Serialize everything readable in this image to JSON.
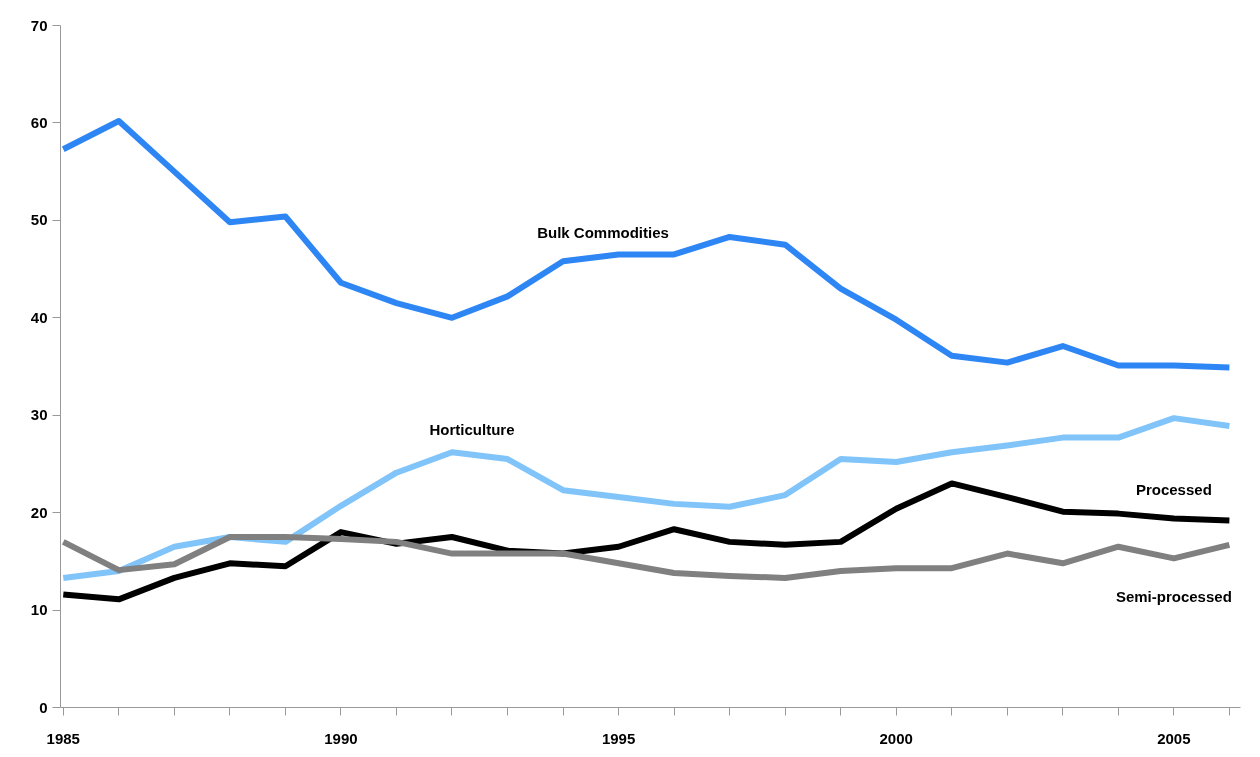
{
  "chart_data": {
    "type": "line",
    "x": [
      1985,
      1986,
      1987,
      1988,
      1989,
      1990,
      1991,
      1992,
      1993,
      1994,
      1995,
      1996,
      1997,
      1998,
      1999,
      2000,
      2001,
      2002,
      2003,
      2004,
      2005,
      2006
    ],
    "series": [
      {
        "name": "Bulk Commodities",
        "color": "#2e86f5",
        "values": [
          57.3,
          60.2,
          55.0,
          49.8,
          50.4,
          43.6,
          41.5,
          40.0,
          42.2,
          45.8,
          46.5,
          46.5,
          48.3,
          47.5,
          43.0,
          39.8,
          36.1,
          35.4,
          37.1,
          35.1,
          35.1,
          34.9
        ]
      },
      {
        "name": "Horticulture",
        "color": "#80c4fa",
        "values": [
          13.3,
          14.0,
          16.5,
          17.5,
          17.0,
          20.7,
          24.1,
          26.2,
          25.5,
          22.3,
          21.6,
          20.9,
          20.6,
          21.8,
          25.5,
          25.2,
          26.2,
          26.9,
          27.7,
          27.7,
          29.7,
          28.9
        ]
      },
      {
        "name": "Processed",
        "color": "#000000",
        "values": [
          11.6,
          11.1,
          13.3,
          14.8,
          14.5,
          18.0,
          16.8,
          17.5,
          16.1,
          15.8,
          16.5,
          18.3,
          17.0,
          16.7,
          17.0,
          20.4,
          23.0,
          21.6,
          20.1,
          19.9,
          19.4,
          19.2
        ]
      },
      {
        "name": "Semi-processed",
        "color": "#808080",
        "values": [
          17.0,
          14.1,
          14.7,
          17.5,
          17.5,
          17.3,
          17.0,
          15.8,
          15.8,
          15.8,
          14.8,
          13.8,
          13.5,
          13.3,
          14.0,
          14.3,
          14.3,
          15.8,
          14.8,
          16.5,
          15.3,
          16.7
        ]
      }
    ],
    "xlim": [
      1984.95,
      2006.2
    ],
    "xticks": [
      1985,
      {
        "value": 1986,
        "label": null
      },
      {
        "value": 1987,
        "label": null
      },
      {
        "value": 1988,
        "label": null
      },
      {
        "value": 1989,
        "label": null
      },
      1990,
      {
        "value": 1991,
        "label": null
      },
      {
        "value": 1992,
        "label": null
      },
      {
        "value": 1993,
        "label": null
      },
      {
        "value": 1994,
        "label": null
      },
      1995,
      {
        "value": 1996,
        "label": null
      },
      {
        "value": 1997,
        "label": null
      },
      {
        "value": 1998,
        "label": null
      },
      {
        "value": 1999,
        "label": null
      },
      2000,
      {
        "value": 2001,
        "label": null
      },
      {
        "value": 2002,
        "label": null
      },
      {
        "value": 2003,
        "label": null
      },
      {
        "value": 2004,
        "label": null
      },
      2005,
      {
        "value": 2006,
        "label": null
      }
    ],
    "ylim": [
      0,
      70
    ],
    "yticks": [
      0,
      10,
      20,
      30,
      40,
      50,
      60,
      70
    ],
    "grid": false,
    "marker": "none",
    "line_style": "solid"
  }
}
